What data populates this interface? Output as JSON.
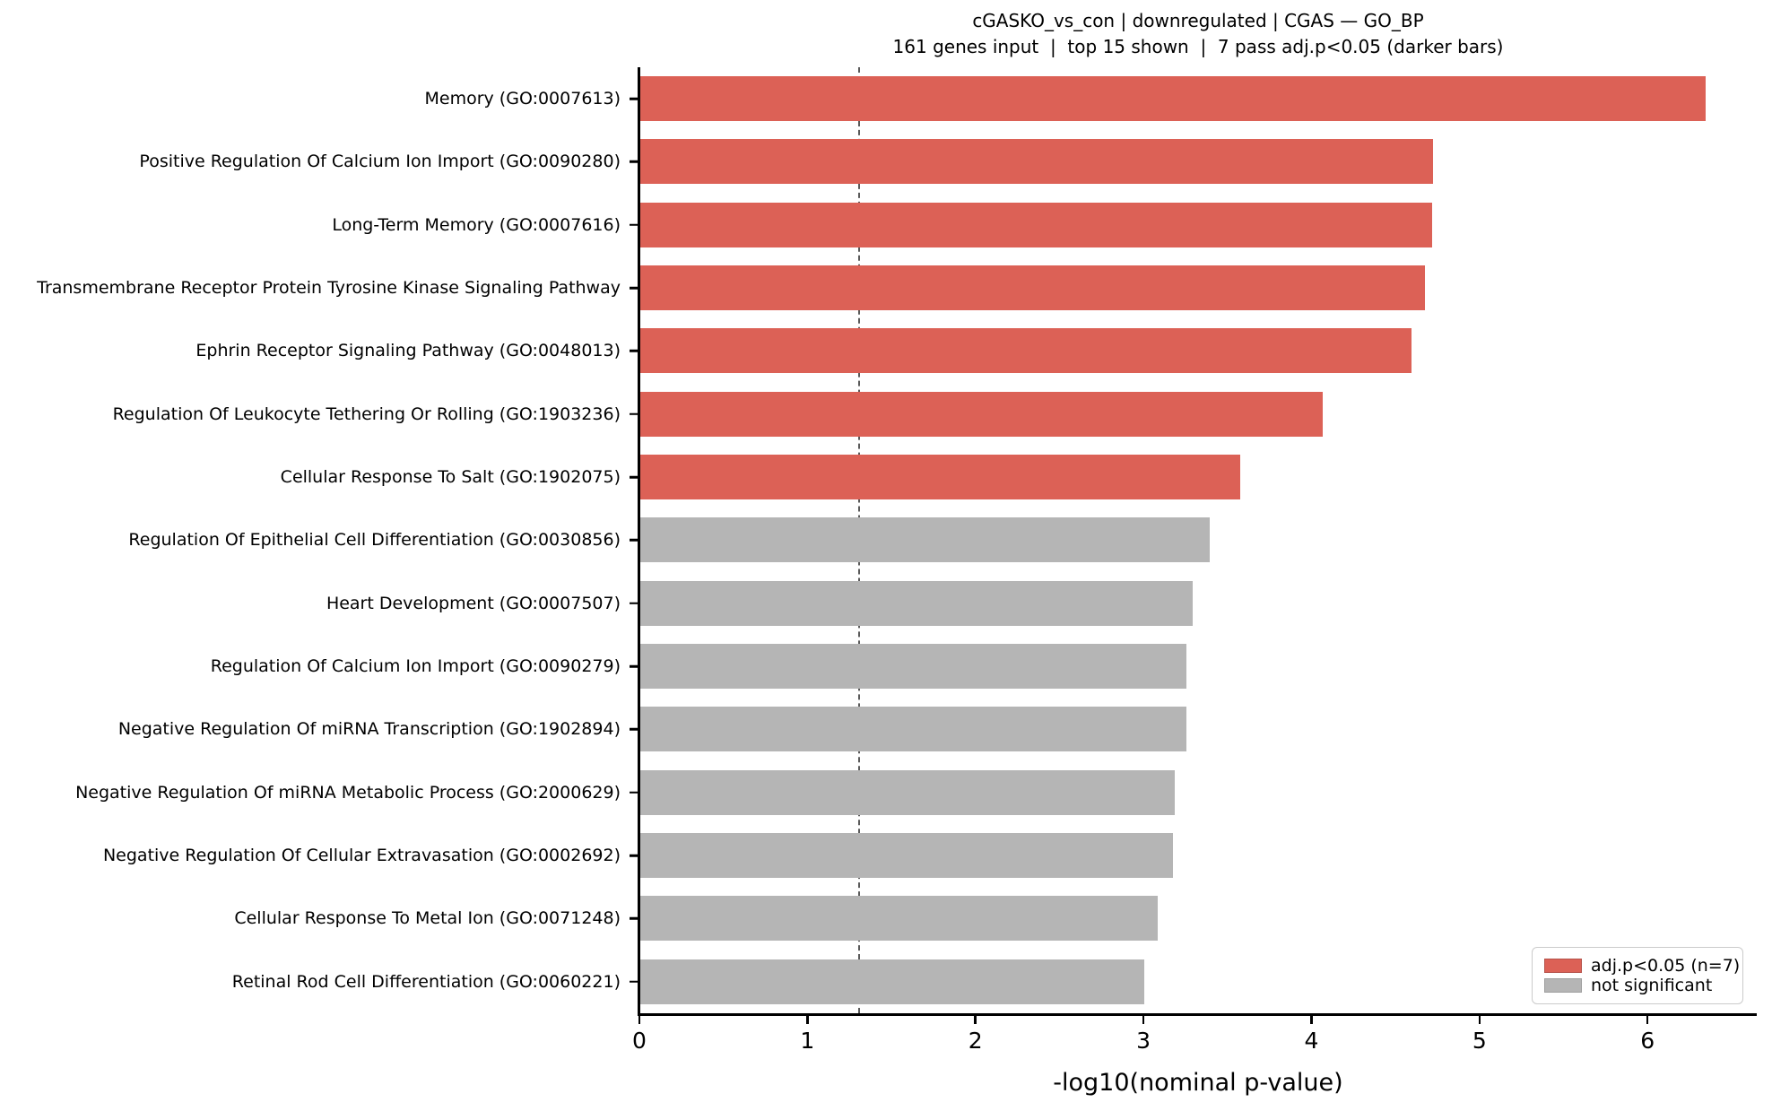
{
  "title": "cGASKO_vs_con | downregulated | CGAS — GO_BP",
  "subtitle": "161 genes input  |  top 15 shown  |  7 pass adj.p<0.05 (darker bars)",
  "chart_data": {
    "type": "bar",
    "orientation": "horizontal",
    "title": "cGASKO_vs_con | downregulated | CGAS — GO_BP",
    "subtitle": "161 genes input  |  top 15 shown  |  7 pass adj.p<0.05 (darker bars)",
    "xlabel": "-log10(nominal p-value)",
    "ylabel": "",
    "xlim": [
      0,
      6.65
    ],
    "xticks": [
      0,
      1,
      2,
      3,
      4,
      5,
      6
    ],
    "grid": false,
    "threshold_line_x": 1.301,
    "threshold_line_style": "dashed",
    "categories": [
      "Memory (GO:0007613)",
      "Positive Regulation Of Calcium Ion Import (GO:0090280)",
      "Long-Term Memory (GO:0007616)",
      "Transmembrane Receptor Protein Tyrosine Kinase Signaling Pathway",
      "Ephrin Receptor Signaling Pathway (GO:0048013)",
      "Regulation Of Leukocyte Tethering Or Rolling (GO:1903236)",
      "Cellular Response To Salt (GO:1902075)",
      "Regulation Of Epithelial Cell Differentiation (GO:0030856)",
      "Heart Development (GO:0007507)",
      "Regulation Of Calcium Ion Import (GO:0090279)",
      "Negative Regulation Of miRNA Transcription (GO:1902894)",
      "Negative Regulation Of miRNA Metabolic Process (GO:2000629)",
      "Negative Regulation Of Cellular Extravasation (GO:0002692)",
      "Cellular Response To Metal Ion (GO:0071248)",
      "Retinal Rod Cell Differentiation (GO:0060221)"
    ],
    "values": [
      6.34,
      4.72,
      4.71,
      4.67,
      4.59,
      4.06,
      3.57,
      3.39,
      3.29,
      3.25,
      3.25,
      3.18,
      3.17,
      3.08,
      3.0
    ],
    "significant": [
      true,
      true,
      true,
      true,
      true,
      true,
      true,
      false,
      false,
      false,
      false,
      false,
      false,
      false,
      false
    ],
    "colors": {
      "significant": "#DC6156",
      "not_significant": "#B5B5B5",
      "significant_edge": "#B5524A",
      "not_significant_edge": "#9E9E9E",
      "threshold_line": "#595959"
    },
    "legend_position": "lower right",
    "legend": [
      {
        "label": "adj.p<0.05 (n=7)",
        "color": "#DC6156",
        "edge": "#B5524A"
      },
      {
        "label": "not significant",
        "color": "#B5B5B5",
        "edge": "#9E9E9E"
      }
    ]
  }
}
